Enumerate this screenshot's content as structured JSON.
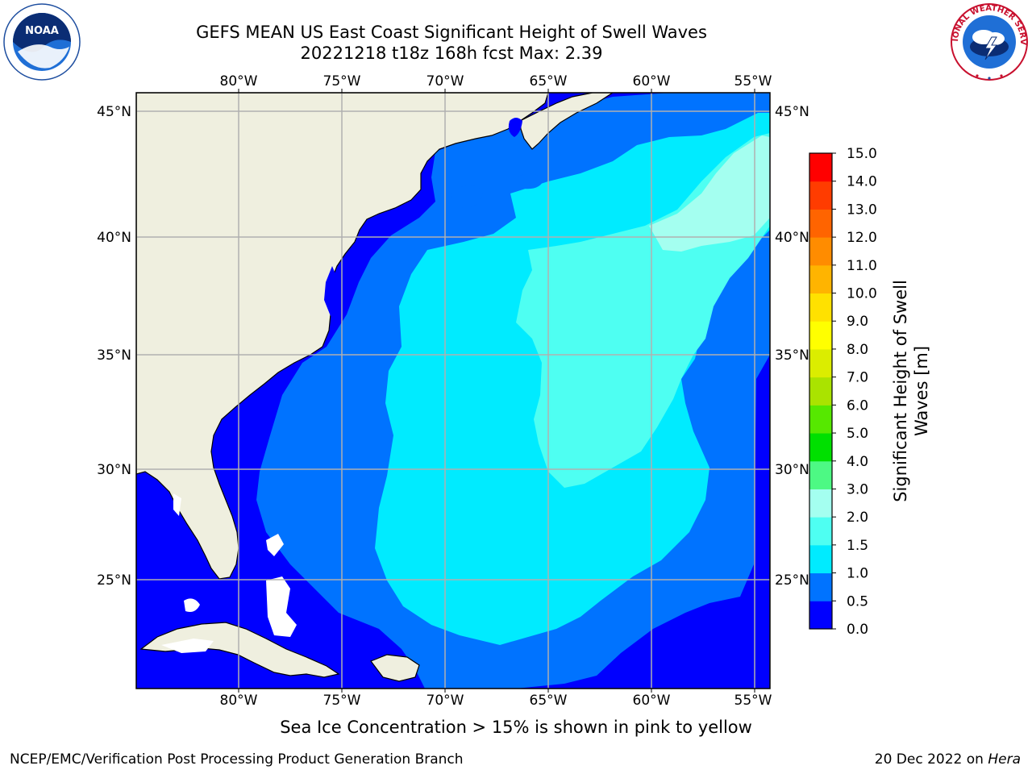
{
  "title": {
    "line1": "GEFS MEAN US East Coast Significant Height of Swell Waves",
    "line2": "20221218 t18z 168h fcst   Max: 2.39"
  },
  "logos": {
    "left": "noaa-logo",
    "left_text": "NOAA",
    "right": "nws-logo",
    "right_text": "NATIONAL WEATHER SERVICE"
  },
  "map": {
    "lon_ticks": [
      "80°W",
      "75°W",
      "70°W",
      "65°W",
      "60°W",
      "55°W"
    ],
    "lat_ticks": [
      "45°N",
      "40°N",
      "35°N",
      "30°N",
      "25°N"
    ],
    "lon_range": [
      -85,
      -54
    ],
    "lat_range": [
      20.5,
      46
    ],
    "grid": true,
    "land_color": "#efefdf",
    "coast_color": "#000000"
  },
  "colorbar": {
    "title": "Significant Height of Swell Waves [m]",
    "title_lines": [
      "Significant Height of Swell",
      "Waves [m]"
    ],
    "levels": [
      "0.0",
      "0.5",
      "1.0",
      "1.5",
      "2.0",
      "3.0",
      "4.0",
      "5.0",
      "6.0",
      "7.0",
      "8.0",
      "9.0",
      "10.0",
      "11.0",
      "12.0",
      "13.0",
      "14.0",
      "15.0"
    ],
    "colors": [
      "#0000ff",
      "#0073ff",
      "#00ebff",
      "#4efff2",
      "#a4fff0",
      "#4df984",
      "#00e000",
      "#56e800",
      "#aae300",
      "#dbed00",
      "#ffff00",
      "#ffe100",
      "#ffb400",
      "#ff8c00",
      "#ff6400",
      "#ff3c00",
      "#ff0000"
    ]
  },
  "ice_note": "Sea Ice Concentration > 15% is shown in pink to yellow",
  "footer": {
    "left": "NCEP/EMC/Verification Post Processing Product Generation Branch",
    "right_prefix": "20 Dec 2022 on ",
    "right_machine": "Hera"
  }
}
